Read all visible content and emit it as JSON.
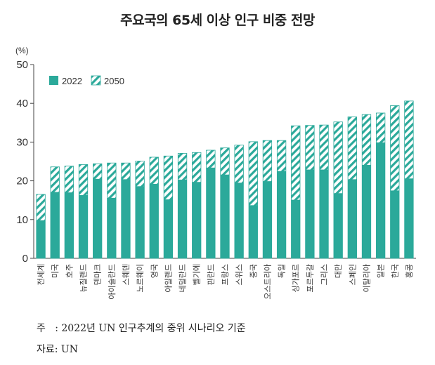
{
  "title": "주요국의 65세 이상 인구 비중 전망",
  "chart_data": {
    "type": "bar",
    "unit_label": "(%)",
    "ylim": [
      0,
      50
    ],
    "yticks": [
      0,
      10,
      20,
      30,
      40,
      50
    ],
    "grid": false,
    "legend_position": "top-left",
    "categories": [
      "전세계",
      "미국",
      "호주",
      "뉴질랜드",
      "덴마크",
      "아이슬란드",
      "스웨덴",
      "노르웨이",
      "영국",
      "아일랜드",
      "네덜란드",
      "벨기에",
      "핀란드",
      "프랑스",
      "스위스",
      "중국",
      "오스트리아",
      "독일",
      "싱가포르",
      "포르투갈",
      "그리스",
      "대만",
      "스페인",
      "이탈리아",
      "일본",
      "한국",
      "홍콩"
    ],
    "series": [
      {
        "name": "2022",
        "color": "#2ba99a",
        "pattern": "solid",
        "values": [
          9.8,
          17.1,
          17.0,
          16.3,
          20.5,
          15.6,
          20.4,
          18.6,
          19.2,
          15.2,
          20.3,
          19.7,
          23.4,
          21.6,
          19.5,
          13.7,
          19.9,
          22.5,
          15.1,
          22.9,
          22.9,
          16.8,
          20.4,
          24.1,
          29.9,
          17.5,
          20.6
        ]
      },
      {
        "name": "2050",
        "color": "#2ba99a",
        "pattern": "hatched",
        "values": [
          16.5,
          23.6,
          23.8,
          24.2,
          24.4,
          24.6,
          24.6,
          25.1,
          26.1,
          26.4,
          27.1,
          27.3,
          27.9,
          28.5,
          29.2,
          30.1,
          30.4,
          30.4,
          34.2,
          34.3,
          34.4,
          35.2,
          36.5,
          37.1,
          37.5,
          39.4,
          40.6
        ]
      }
    ]
  },
  "notes": {
    "note": "주   : 2022년 UN 인구추계의 중위 시나리오 기준",
    "source": "자료: UN"
  }
}
